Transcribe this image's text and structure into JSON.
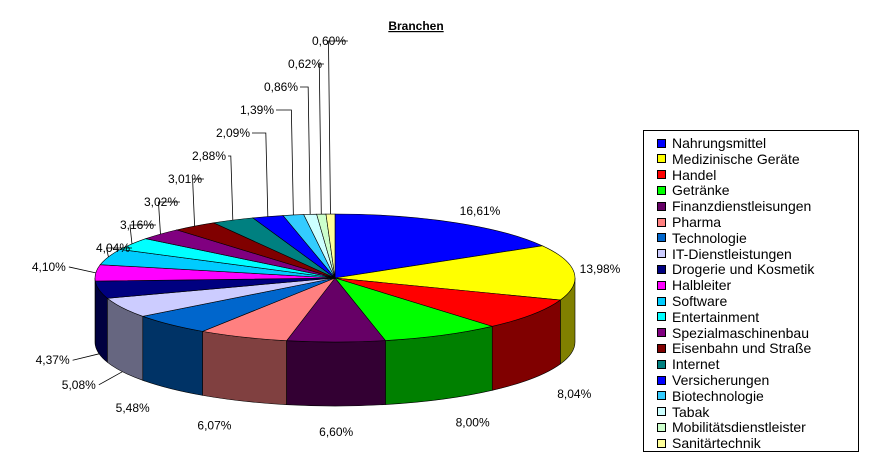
{
  "chart_data": {
    "type": "pie",
    "title": "Branchen",
    "legend_position": "right",
    "three_d": true,
    "categories": [
      "Nahrungsmittel",
      "Medizinische Geräte",
      "Handel",
      "Getränke",
      "Finanzdienstleisungen",
      "Pharma",
      "Technologie",
      "IT-Dienstleistungen",
      "Drogerie und Kosmetik",
      "Halbleiter",
      "Software",
      "Entertainment",
      "Spezialmaschinenbau",
      "Eisenbahn und Straße",
      "Internet",
      "Versicherungen",
      "Biotechnologie",
      "Tabak",
      "Mobilitätsdienstleister",
      "Sanitärtechnik"
    ],
    "values": [
      16.61,
      13.98,
      8.04,
      8.0,
      6.6,
      6.07,
      5.48,
      5.08,
      4.37,
      4.1,
      4.04,
      3.16,
      3.02,
      3.01,
      2.88,
      2.09,
      1.39,
      0.86,
      0.62,
      0.6
    ],
    "data_labels": [
      "16,61%",
      "13,98%",
      "8,04%",
      "8,00%",
      "6,60%",
      "6,07%",
      "5,48%",
      "5,08%",
      "4,37%",
      "4,10%",
      "4,04%",
      "3,16%",
      "3,02%",
      "3,01%",
      "2,88%",
      "2,09%",
      "1,39%",
      "0,86%",
      "0,62%",
      "0,60%"
    ],
    "colors": [
      "#0000ff",
      "#ffff00",
      "#ff0000",
      "#00ff00",
      "#660066",
      "#ff8080",
      "#0066cc",
      "#ccccff",
      "#000080",
      "#ff00ff",
      "#00ccff",
      "#00ffff",
      "#800080",
      "#800000",
      "#008080",
      "#0000ff",
      "#33ccff",
      "#ccffff",
      "#ccffcc",
      "#ffff99"
    ]
  }
}
